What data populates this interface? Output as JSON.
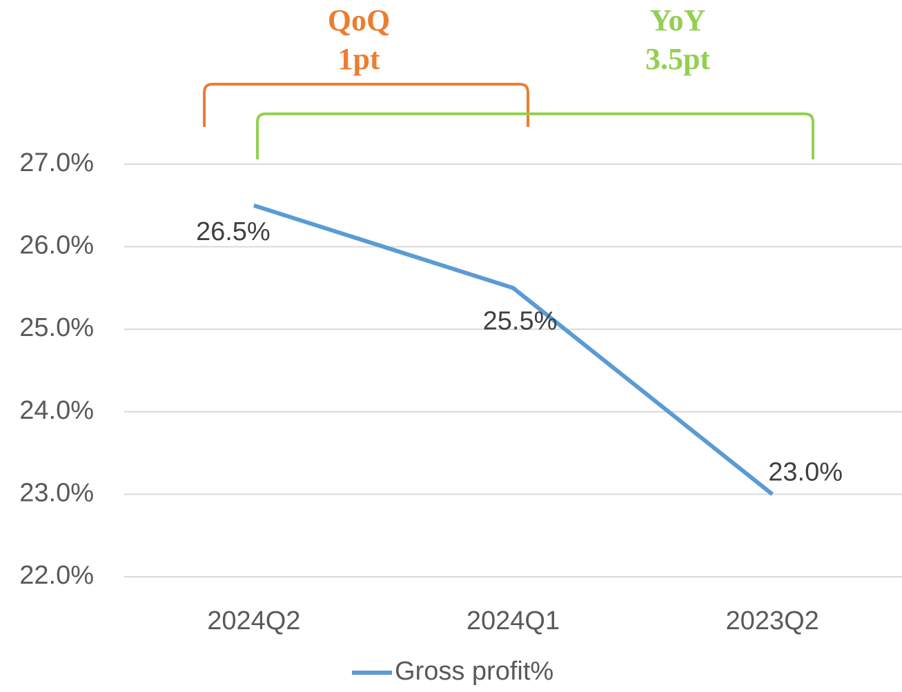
{
  "chart_data": {
    "type": "line",
    "categories": [
      "2024Q2",
      "2024Q1",
      "2023Q2"
    ],
    "series": [
      {
        "name": "Gross profit%",
        "color": "#5b9bd5",
        "values": [
          26.5,
          25.5,
          23.0
        ],
        "value_labels": [
          "26.5%",
          "25.5%",
          "23.0%"
        ]
      }
    ],
    "ylim": [
      22,
      27
    ],
    "yticks": [
      {
        "value": 22,
        "label": "22.0%"
      },
      {
        "value": 23,
        "label": "23.0%"
      },
      {
        "value": 24,
        "label": "24.0%"
      },
      {
        "value": 25,
        "label": "25.0%"
      },
      {
        "value": 26,
        "label": "26.0%"
      },
      {
        "value": 27,
        "label": "27.0%"
      }
    ],
    "grid": true,
    "legend": "bottom",
    "annotations": [
      {
        "lines": [
          "QoQ",
          "1pt"
        ],
        "color": "#ed7d31"
      },
      {
        "lines": [
          "YoY",
          "3.5pt"
        ],
        "color": "#92d050"
      }
    ]
  }
}
